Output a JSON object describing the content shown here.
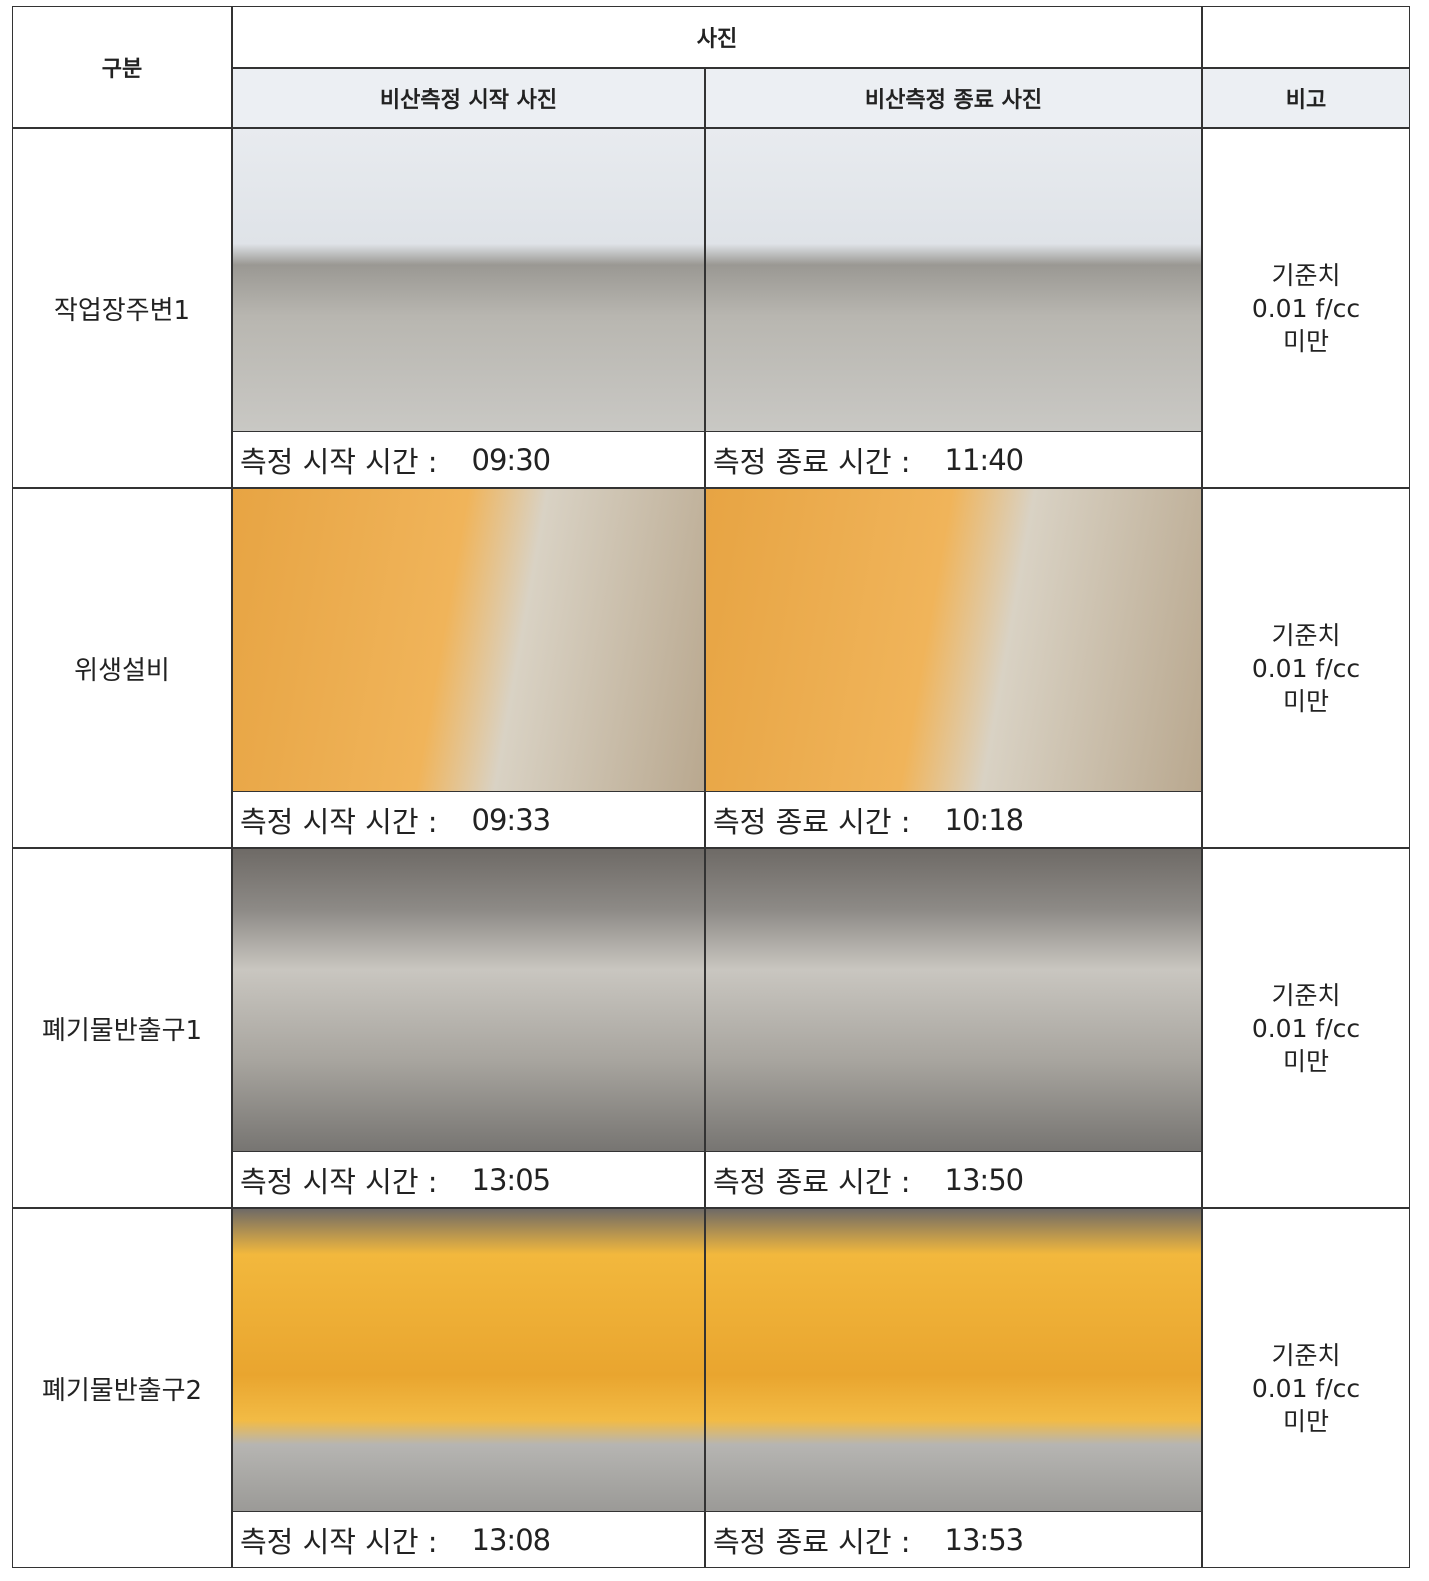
{
  "table": {
    "headers": {
      "category": "구분",
      "photos": "사진",
      "start": "비산측정 시작 사진",
      "end": "비산측정 종료 사진",
      "remark": "비고"
    },
    "rows": [
      {
        "label": "작업장주변1",
        "start_label": "측정 시작 시간 :",
        "start_time": "09:30",
        "end_label": "측정 종료 시간 :",
        "end_time": "11:40",
        "remark": [
          "기준치",
          "0.01 f/cc",
          "미만"
        ]
      },
      {
        "label": "위생설비",
        "start_label": "측정 시작 시간 :",
        "start_time": "09:33",
        "end_label": "측정 종료 시간 :",
        "end_time": "10:18",
        "remark": [
          "기준치",
          "0.01 f/cc",
          "미만"
        ]
      },
      {
        "label": "폐기물반출구1",
        "start_label": "측정 시작 시간 :",
        "start_time": "13:05",
        "end_label": "측정 종료 시간 :",
        "end_time": "13:50",
        "remark": [
          "기준치",
          "0.01 f/cc",
          "미만"
        ]
      },
      {
        "label": "폐기물반출구2",
        "start_label": "측정 시작 시간 :",
        "start_time": "13:08",
        "end_label": "측정 종료 시간 :",
        "end_time": "13:53",
        "remark": [
          "기준치",
          "0.01 f/cc",
          "미만"
        ]
      }
    ]
  }
}
